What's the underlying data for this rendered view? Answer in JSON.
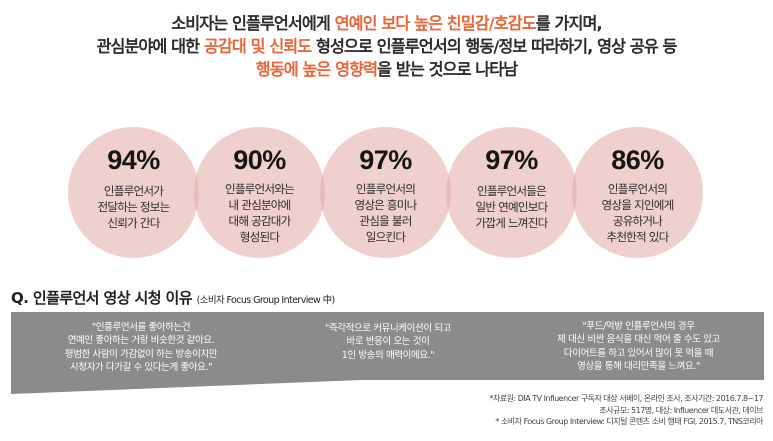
{
  "headline": {
    "line1_a": "소비자는 인플루언서에게 ",
    "line1_hl": "연예인 보다 높은 친밀감/호감도",
    "line1_b": "를 가지며,",
    "line2_a": "관심분야에 대한 ",
    "line2_hl": "공감대 및 신뢰도",
    "line2_b": " 형성으로 인플루언서의 행동/정보 따라하기, 영상 공유 등",
    "line3_hl": "행동에 높은 영향력",
    "line3_b": "을 받는 것으로 나타남"
  },
  "stats": [
    {
      "percent": "94%",
      "text": "인플루언서가\n전달하는 정보는\n신뢰가 간다"
    },
    {
      "percent": "90%",
      "text": "인플루언서와는\n내 관심분야에\n대해 공감대가\n형성된다"
    },
    {
      "percent": "97%",
      "text": "인플루언서의\n영상은 흥미나\n관심을 불러\n일으킨다"
    },
    {
      "percent": "97%",
      "text": "인플루언서들은\n일반 연예인보다\n가깝게 느껴진다"
    },
    {
      "percent": "86%",
      "text": "인플루언서의\n영상을 지인에게\n공유하거나\n추천한적 있다"
    }
  ],
  "section": {
    "title": "Q. 인플루언서 영상 시청 이유",
    "subtitle": "(소비자 Focus Group Interview 中)"
  },
  "quotes": [
    "\"인플루언서를 좋아하는건\n연예인 좋아하는 거랑 비슷한것 같아요.\n평범한 사람이 가감없이 하는 방송이지만\n시청자가 다가갈 수 있다는게 좋아요.\"",
    "\"즉각적으로 커뮤니케이션이 되고\n바로 반응이 오는 것이\n1인 방송의 매력이에요.\"",
    "\"푸드/먹방 인플루언서의 경우\n제 대신 비싼 음식을 대신 먹어 줄 수도 있고\n다이어트를 하고 있어서 많이 못 먹을 때\n영상을 통해 대리만족을 느껴요.\""
  ],
  "notes": [
    "*자료원: DIA TV Influencer 구독자 대상 서베이, 온라인 조사, 조사기간: 2016.7.8~17",
    "조사규모: 517명, 대상: Influencer 대도서관, 데이브",
    "* 소비자 Focus Group Interview: 디지털 콘텐츠 소비 행태 FGI, 2015.7, TNS코리아"
  ],
  "colors": {
    "accent": "#e8673a",
    "circle_fill": "#e4aaa6",
    "band_fill": "#8b8b8b"
  }
}
